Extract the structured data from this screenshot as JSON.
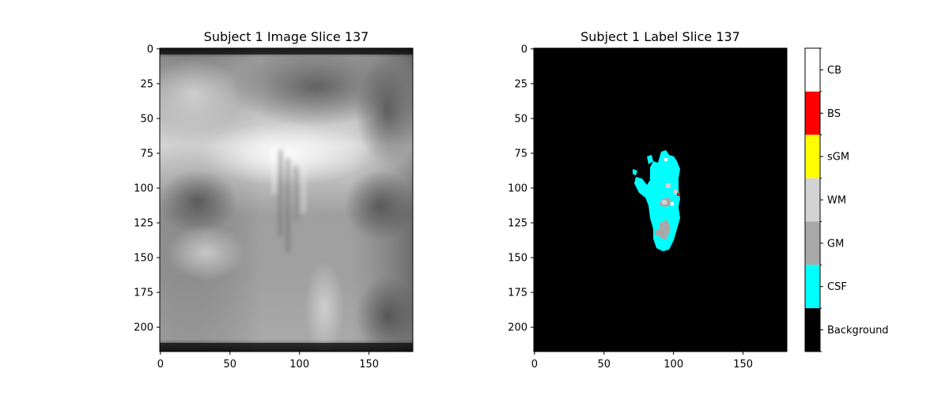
{
  "left_panel": {
    "title": "Subject 1 Image Slice 137",
    "x_ticks": [
      "0",
      "50",
      "100",
      "150"
    ],
    "y_ticks": [
      "0",
      "25",
      "50",
      "75",
      "100",
      "125",
      "150",
      "175",
      "200"
    ]
  },
  "right_panel": {
    "title": "Subject 1 Label Slice 137",
    "x_ticks": [
      "0",
      "50",
      "100",
      "150"
    ],
    "y_ticks": [
      "0",
      "25",
      "50",
      "75",
      "100",
      "125",
      "150",
      "175",
      "200"
    ]
  },
  "colorbar": {
    "labels": [
      "CB",
      "BS",
      "sGM",
      "WM",
      "GM",
      "CSF",
      "Background"
    ],
    "colors": [
      "#ffffff",
      "#ff0000",
      "#ffff00",
      "#d3d3d3",
      "#a9a9a9",
      "#00ffff",
      "#000000"
    ]
  },
  "image_dims": {
    "width": 182,
    "height": 218
  }
}
